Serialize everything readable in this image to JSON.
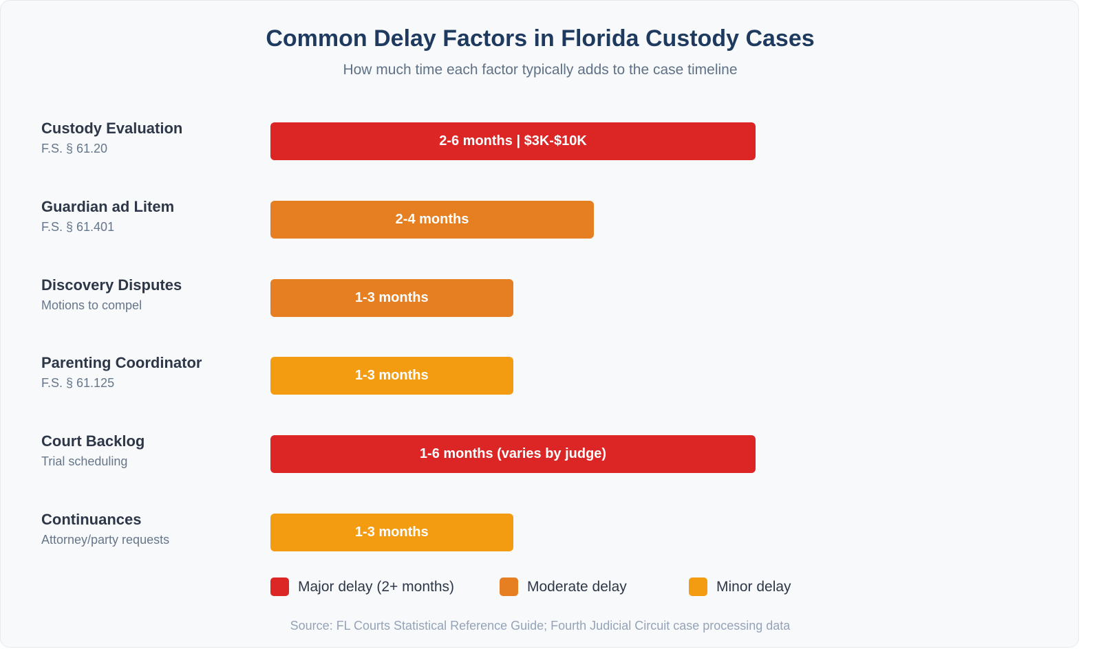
{
  "colors": {
    "major": "#dc2626",
    "moderate": "#e67e22",
    "minor": "#f39c12"
  },
  "chart_data": {
    "type": "bar",
    "orientation": "horizontal",
    "title": "Common Delay Factors in Florida Custody Cases",
    "subtitle": "How much time each factor typically adds to the case timeline",
    "unit": "months",
    "categories": [
      "Custody Evaluation",
      "Guardian ad Litem",
      "Discovery Disputes",
      "Parenting Coordinator",
      "Court Backlog",
      "Continuances"
    ],
    "items": [
      {
        "label": "Custody Evaluation",
        "sublabel": "F.S. § 61.20",
        "bar_label": "2-6 months | $3K-$10K",
        "min": 2,
        "max": 6,
        "severity": "major"
      },
      {
        "label": "Guardian ad Litem",
        "sublabel": "F.S. § 61.401",
        "bar_label": "2-4 months",
        "min": 2,
        "max": 4,
        "severity": "moderate"
      },
      {
        "label": "Discovery Disputes",
        "sublabel": "Motions to compel",
        "bar_label": "1-3 months",
        "min": 1,
        "max": 3,
        "severity": "moderate"
      },
      {
        "label": "Parenting Coordinator",
        "sublabel": "F.S. § 61.125",
        "bar_label": "1-3 months",
        "min": 1,
        "max": 3,
        "severity": "minor"
      },
      {
        "label": "Court Backlog",
        "sublabel": "Trial scheduling",
        "bar_label": "1-6 months (varies by judge)",
        "min": 1,
        "max": 6,
        "severity": "major"
      },
      {
        "label": "Continuances",
        "sublabel": "Attorney/party requests",
        "bar_label": "1-3 months",
        "min": 1,
        "max": 3,
        "severity": "minor"
      }
    ],
    "legend": [
      {
        "key": "major",
        "label": "Major delay (2+ months)"
      },
      {
        "key": "moderate",
        "label": "Moderate delay"
      },
      {
        "key": "minor",
        "label": "Minor delay"
      }
    ],
    "legend_position": "bottom",
    "grid": false,
    "source": "Source: FL Courts Statistical Reference Guide; Fourth Judicial Circuit case processing data"
  }
}
